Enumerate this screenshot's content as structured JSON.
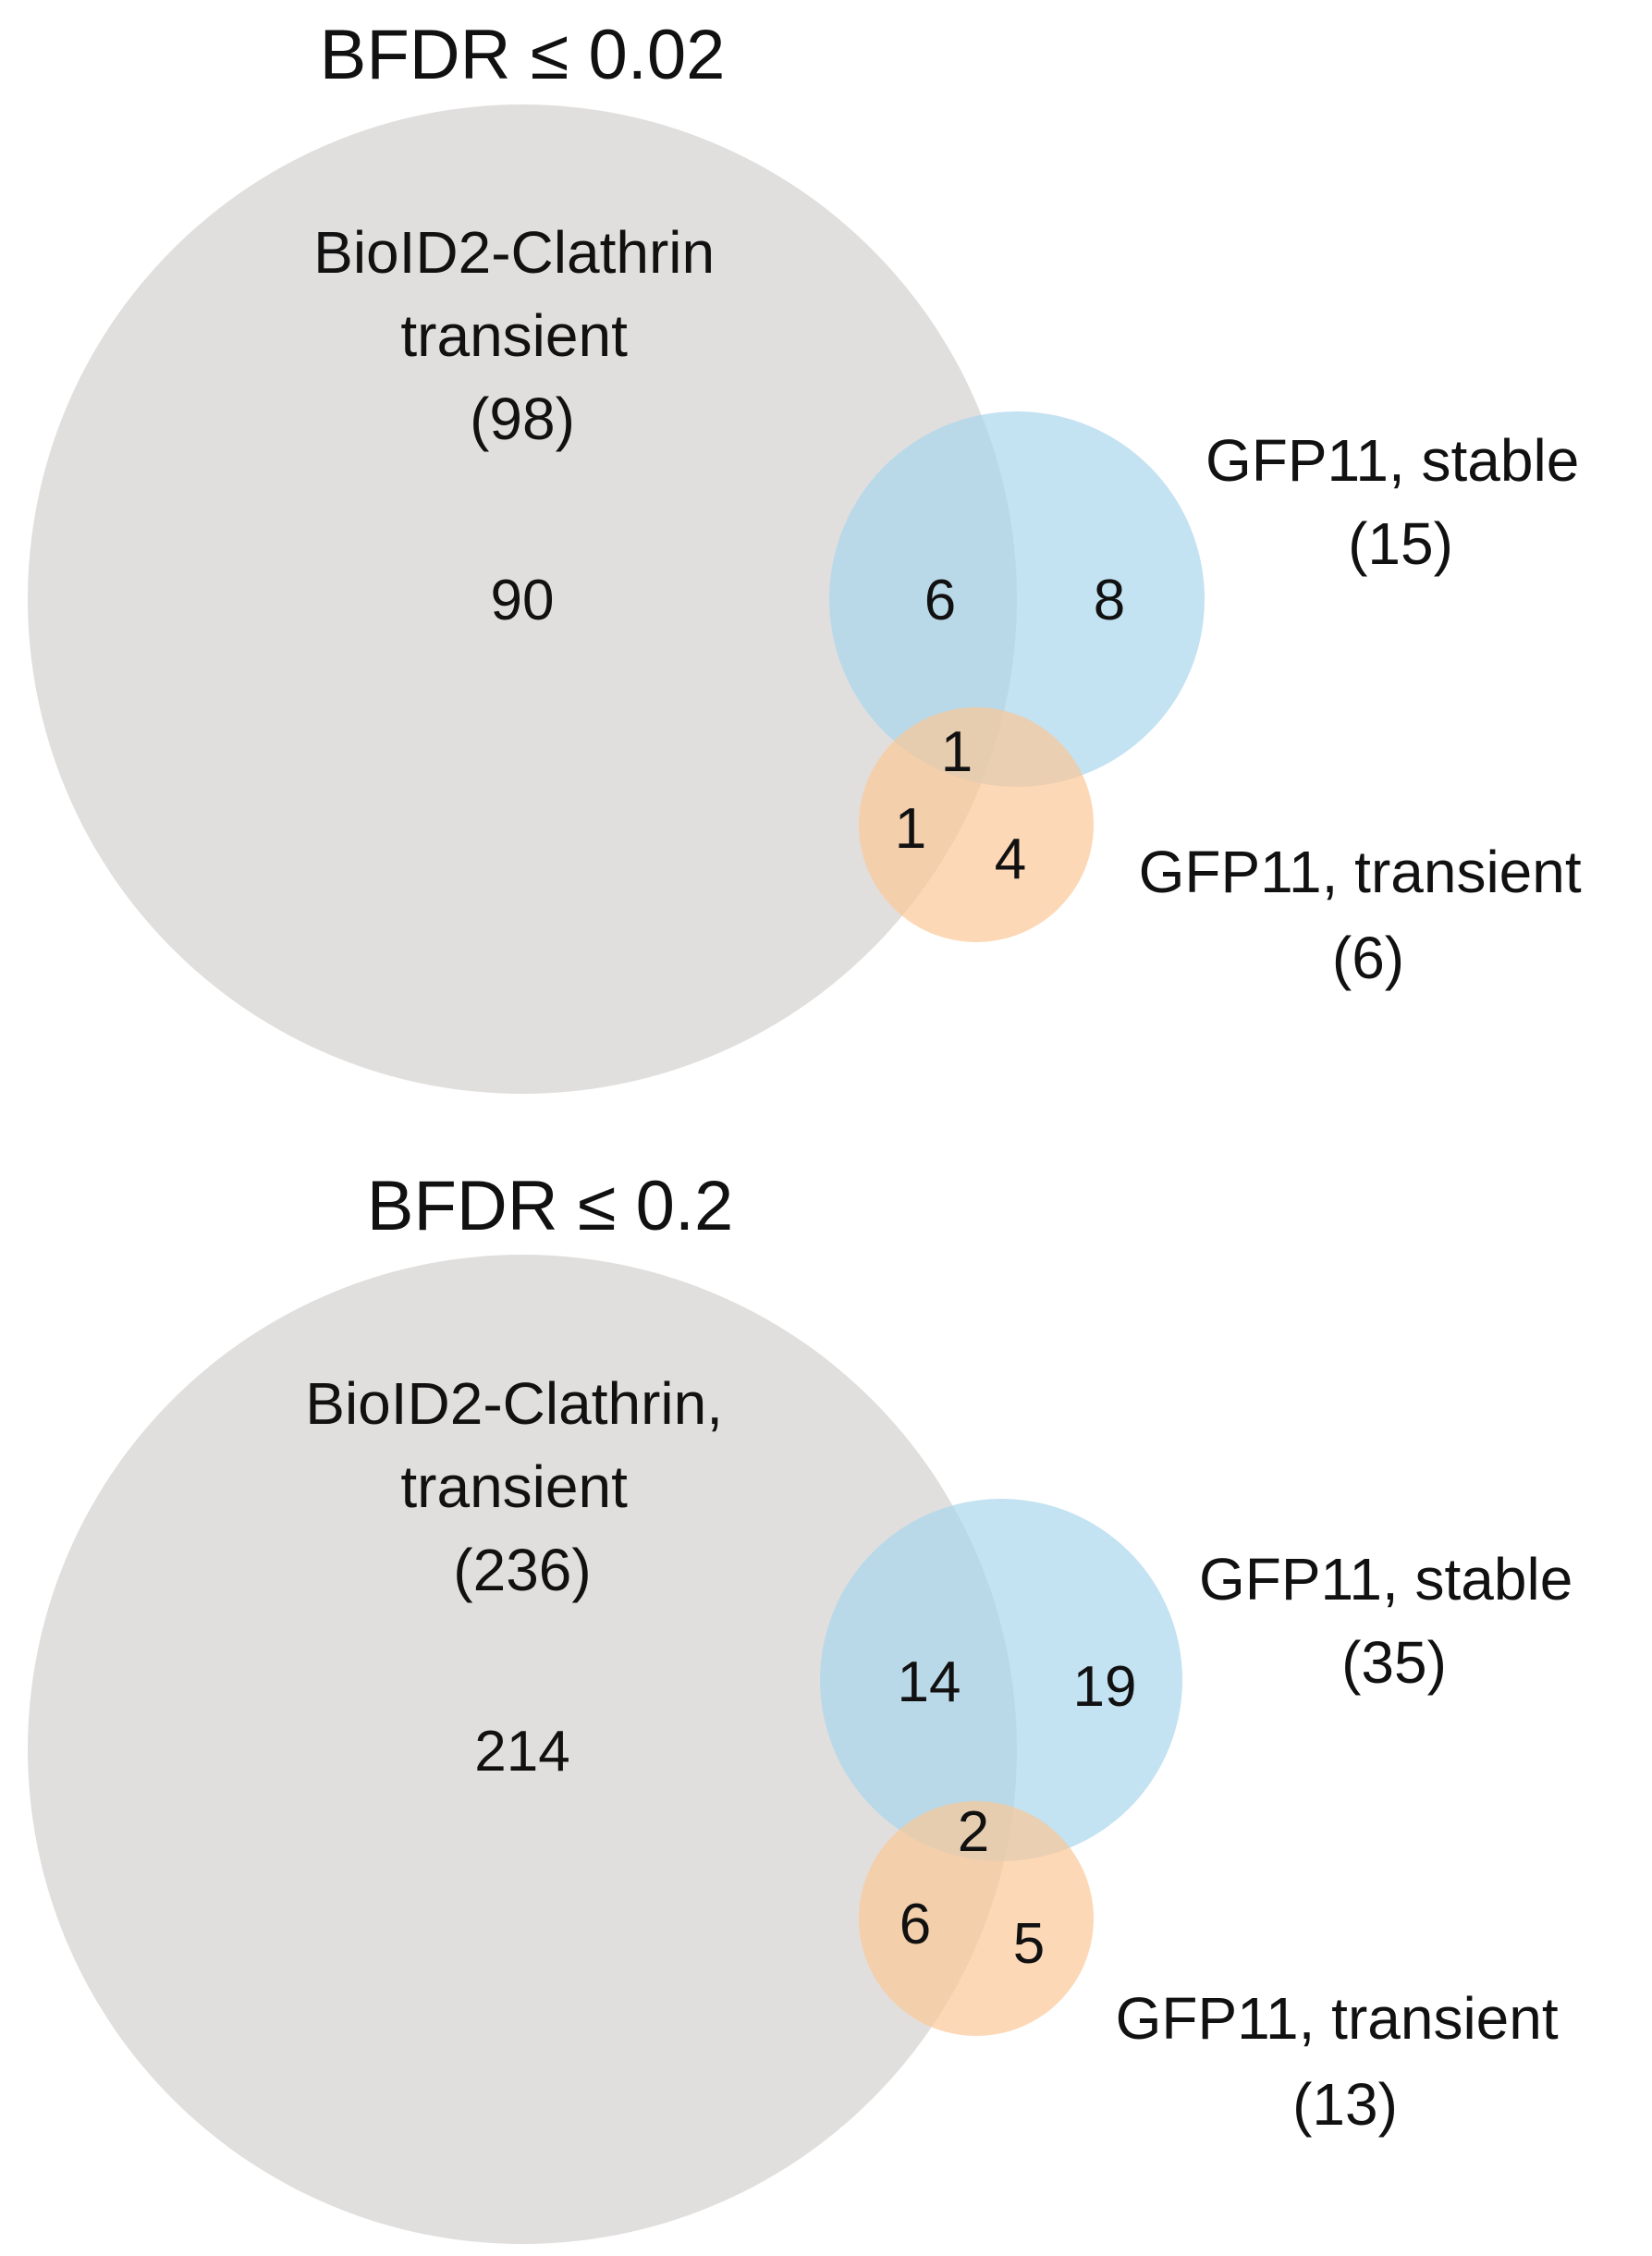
{
  "panels": [
    {
      "title": "BFDR ≤ 0.02",
      "sets": [
        {
          "label_lines": [
            "BioID2-Clathrin",
            "transient",
            "(98)"
          ],
          "total": 98,
          "color": "#d9d7d6"
        },
        {
          "label_lines": [
            "GFP11, stable",
            "(15)"
          ],
          "total": 15,
          "color": "#a9d6ec"
        },
        {
          "label_lines": [
            "GFP11, transient",
            "(6)"
          ],
          "total": 6,
          "color": "#fbc797"
        }
      ],
      "regions": {
        "biolid_only": "90",
        "biolid_and_stable": "6",
        "stable_only": "8",
        "all_three": "1",
        "biolid_and_transient": "1",
        "transient_only": "4"
      }
    },
    {
      "title": "BFDR ≤ 0.2",
      "sets": [
        {
          "label_lines": [
            "BioID2-Clathrin,",
            "transient",
            "(236)"
          ],
          "total": 236,
          "color": "#d9d7d6"
        },
        {
          "label_lines": [
            "GFP11, stable",
            "(35)"
          ],
          "total": 35,
          "color": "#a9d6ec"
        },
        {
          "label_lines": [
            "GFP11, transient",
            "(13)"
          ],
          "total": 13,
          "color": "#fbc797"
        }
      ],
      "regions": {
        "biolid_only": "214",
        "biolid_and_stable": "14",
        "stable_only": "19",
        "all_three": "2",
        "biolid_and_transient": "6",
        "transient_only": "5"
      }
    }
  ],
  "colors": {
    "text": "#111111",
    "overlap_text_bottom": "#2a2a2a"
  }
}
